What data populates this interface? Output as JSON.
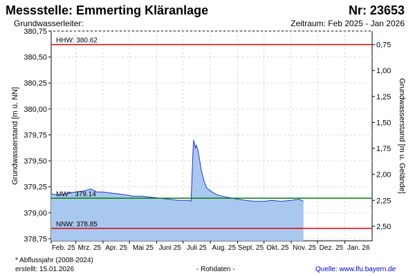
{
  "header": {
    "title_left": "Messstelle: Emmerting Kläranlage",
    "title_right": "Nr: 23653",
    "subtitle_left": "Grundwasserleiter:",
    "subtitle_right": "Zeitraum: Feb 2025 - Jan 2026"
  },
  "footer": {
    "note": "* Abflussjahr (2008-2024)",
    "created": "erstellt:  15.01.2026",
    "raw": "- Rohdaten -",
    "source": "Quelle: www.lfu.bayern.de"
  },
  "colors": {
    "area_fill": "#a9c8f0",
    "line": "#2233cc",
    "hhw_nnw": "#dd0000",
    "mw": "#008000",
    "grid": "#d9d9d9"
  },
  "chart_data": {
    "type": "area",
    "ylabel": "Grundwasserstand [m ü. NN]",
    "ylabel_right": "Grundwasserstand [m u. Gelände]",
    "ylim": [
      378.73,
      380.75
    ],
    "yticks": [
      "380,75",
      "380,50",
      "380,25",
      "380,00",
      "379,75",
      "379,50",
      "379,25",
      "379,00",
      "378,75"
    ],
    "yticks_right": [
      "0,75",
      "1,00",
      "1,25",
      "1,50",
      "1,75",
      "2,00",
      "2,25",
      "2,50"
    ],
    "xlim": [
      "2025-02-01",
      "2026-02-01"
    ],
    "xticks": [
      "Feb. 25",
      "Mrz. 25",
      "Apr. 25",
      "Mai 25",
      "Juni 25",
      "Juli 25",
      "Aug. 25",
      "Sept. 25",
      "Okt. 25",
      "Nov. 25",
      "Dez. 25",
      "Jan. 26"
    ],
    "grid": true,
    "reference_lines": [
      {
        "label": "HHW: 380.62",
        "value": 380.62
      },
      {
        "label": "MW*: 379.14",
        "value": 379.14
      },
      {
        "label": "NNW: 378.85",
        "value": 378.85
      }
    ],
    "series": [
      {
        "x": [
          "2025-02-01",
          "2025-02-10",
          "2025-02-20",
          "2025-03-01",
          "2025-03-10",
          "2025-03-18",
          "2025-03-25",
          "2025-04-01",
          "2025-04-10",
          "2025-04-20",
          "2025-04-28",
          "2025-05-05",
          "2025-05-15",
          "2025-05-25",
          "2025-06-05",
          "2025-06-15",
          "2025-06-25",
          "2025-07-01",
          "2025-07-06",
          "2025-07-08",
          "2025-07-10",
          "2025-07-11",
          "2025-07-12",
          "2025-07-13",
          "2025-07-14",
          "2025-07-15",
          "2025-07-16",
          "2025-07-18",
          "2025-07-20",
          "2025-07-22",
          "2025-07-25",
          "2025-07-28",
          "2025-08-01",
          "2025-08-05",
          "2025-08-10",
          "2025-08-20",
          "2025-09-01",
          "2025-09-10",
          "2025-09-20",
          "2025-10-01",
          "2025-10-10",
          "2025-10-20",
          "2025-11-01",
          "2025-11-10",
          "2025-11-15"
        ],
        "y": [
          379.18,
          379.17,
          379.19,
          379.2,
          379.21,
          379.23,
          379.2,
          379.2,
          379.19,
          379.18,
          379.17,
          379.16,
          379.16,
          379.15,
          379.14,
          379.13,
          379.12,
          379.12,
          379.12,
          379.12,
          379.11,
          379.3,
          379.55,
          379.7,
          379.67,
          379.62,
          379.65,
          379.6,
          379.5,
          379.4,
          379.3,
          379.24,
          379.21,
          379.19,
          379.17,
          379.15,
          379.13,
          379.12,
          379.11,
          379.11,
          379.12,
          379.11,
          379.12,
          379.13,
          379.11
        ]
      }
    ]
  }
}
